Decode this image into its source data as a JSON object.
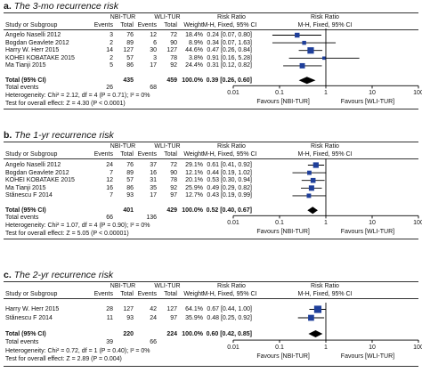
{
  "chart_data": [
    {
      "type": "forest",
      "panel_label": "a.",
      "title": "The 3-mo recurrence risk",
      "headers": {
        "study": "Study or Subgroup",
        "group1": "NBI-TUR",
        "group2": "WLI-TUR",
        "events": "Events",
        "total": "Total",
        "weight": "Weight",
        "rr": "Risk Ratio",
        "rr_sub": "M-H, Fixed, 95% CI",
        "plot": "Risk Ratio",
        "plot_sub": "M-H, Fixed, 95% CI"
      },
      "studies": [
        {
          "name": "Angelo Naselli 2012",
          "e1": "3",
          "n1": "76",
          "e2": "12",
          "n2": "72",
          "weight": "18.4%",
          "ci": "0.24 [0.07, 0.80]",
          "rr": 0.24,
          "lo": 0.07,
          "hi": 0.8,
          "w": 18.4
        },
        {
          "name": "Bogdan Geavlete 2012",
          "e1": "2",
          "n1": "89",
          "e2": "6",
          "n2": "90",
          "weight": "8.9%",
          "ci": "0.34 [0.07, 1.63]",
          "rr": 0.34,
          "lo": 0.07,
          "hi": 1.63,
          "w": 8.9
        },
        {
          "name": "Harry W. Herr 2015",
          "e1": "14",
          "n1": "127",
          "e2": "30",
          "n2": "127",
          "weight": "44.6%",
          "ci": "0.47 [0.26, 0.84]",
          "rr": 0.47,
          "lo": 0.26,
          "hi": 0.84,
          "w": 44.6
        },
        {
          "name": "KOHEI KOBATAKE 2015",
          "e1": "2",
          "n1": "57",
          "e2": "3",
          "n2": "78",
          "weight": "3.8%",
          "ci": "0.91 [0.16, 5.28]",
          "rr": 0.91,
          "lo": 0.16,
          "hi": 5.28,
          "w": 3.8
        },
        {
          "name": "Ma Tianji 2015",
          "e1": "5",
          "n1": "86",
          "e2": "17",
          "n2": "92",
          "weight": "24.4%",
          "ci": "0.31 [0.12, 0.82]",
          "rr": 0.31,
          "lo": 0.12,
          "hi": 0.82,
          "w": 24.4
        }
      ],
      "total": {
        "label": "Total (95% CI)",
        "n1": "435",
        "n2": "459",
        "weight": "100.0%",
        "ci": "0.39 [0.26, 0.60]",
        "rr": 0.39,
        "lo": 0.26,
        "hi": 0.6
      },
      "total_events": {
        "label": "Total events",
        "e1": "26",
        "e2": "68"
      },
      "heterogeneity": "Heterogeneity: Chi² = 2.12, df = 4 (P = 0.71); I² = 0%",
      "overall_effect": "Test for overall effect: Z = 4.30 (P < 0.0001)",
      "axis": {
        "scale": "log",
        "ticks": [
          0.01,
          0.1,
          1,
          10,
          100
        ],
        "tick_labels": [
          "0.01",
          "0.1",
          "1",
          "10",
          "100"
        ],
        "range": [
          0.01,
          100
        ]
      },
      "favours_left": "Favours [NBI-TUR]",
      "favours_right": "Favours [WLI-TUR]"
    },
    {
      "type": "forest",
      "panel_label": "b.",
      "title": "The 1-yr recurrence risk",
      "headers": {
        "study": "Study or Subgroup",
        "group1": "NBI-TUR",
        "group2": "WLI-TUR",
        "events": "Events",
        "total": "Total",
        "weight": "Weight",
        "rr": "Risk Ratio",
        "rr_sub": "M-H, Fixed, 95% CI",
        "plot": "Risk Ratio",
        "plot_sub": "M-H, Fixed, 95% CI"
      },
      "studies": [
        {
          "name": "Angelo Naselli 2012",
          "e1": "24",
          "n1": "76",
          "e2": "37",
          "n2": "72",
          "weight": "29.1%",
          "ci": "0.61 [0.41, 0.92]",
          "rr": 0.61,
          "lo": 0.41,
          "hi": 0.92,
          "w": 29.1
        },
        {
          "name": "Bogdan Geavlete 2012",
          "e1": "7",
          "n1": "89",
          "e2": "16",
          "n2": "90",
          "weight": "12.1%",
          "ci": "0.44 [0.19, 1.02]",
          "rr": 0.44,
          "lo": 0.19,
          "hi": 1.02,
          "w": 12.1
        },
        {
          "name": "KOHEI KOBATAKE 2015",
          "e1": "12",
          "n1": "57",
          "e2": "31",
          "n2": "78",
          "weight": "20.1%",
          "ci": "0.53 [0.30, 0.94]",
          "rr": 0.53,
          "lo": 0.3,
          "hi": 0.94,
          "w": 20.1
        },
        {
          "name": "Ma Tianji 2015",
          "e1": "16",
          "n1": "86",
          "e2": "35",
          "n2": "92",
          "weight": "25.9%",
          "ci": "0.49 [0.29, 0.82]",
          "rr": 0.49,
          "lo": 0.29,
          "hi": 0.82,
          "w": 25.9
        },
        {
          "name": "Stănescu F 2014",
          "e1": "7",
          "n1": "93",
          "e2": "17",
          "n2": "97",
          "weight": "12.7%",
          "ci": "0.43 [0.19, 0.99]",
          "rr": 0.43,
          "lo": 0.19,
          "hi": 0.99,
          "w": 12.7
        }
      ],
      "total": {
        "label": "Total (95% CI)",
        "n1": "401",
        "n2": "429",
        "weight": "100.0%",
        "ci": "0.52 [0.40, 0.67]",
        "rr": 0.52,
        "lo": 0.4,
        "hi": 0.67
      },
      "total_events": {
        "label": "Total events",
        "e1": "66",
        "e2": "136"
      },
      "heterogeneity": "Heterogeneity: Chi² = 1.07, df = 4 (P = 0.90); I² = 0%",
      "overall_effect": "Test for overall effect: Z = 5.05 (P < 0.00001)",
      "axis": {
        "scale": "log",
        "ticks": [
          0.01,
          0.1,
          1,
          10,
          100
        ],
        "tick_labels": [
          "0.01",
          "0.1",
          "1",
          "10",
          "100"
        ],
        "range": [
          0.01,
          100
        ]
      },
      "favours_left": "Favours [NBI-TUR]",
      "favours_right": "Favours [WLI-TUR]"
    },
    {
      "type": "forest",
      "panel_label": "c.",
      "title": "The 2-yr recurrence risk",
      "headers": {
        "study": "Study or Subgroup",
        "group1": "NBI-TUR",
        "group2": "WLI-TUR",
        "events": "Events",
        "total": "Total",
        "weight": "Weight",
        "rr": "Risk Ratio",
        "rr_sub": "M-H, Fixed, 95% CI",
        "plot": "Risk Ratio",
        "plot_sub": "M-H, Fixed, 95% CI"
      },
      "studies": [
        {
          "name": "Harry W. Herr 2015",
          "e1": "28",
          "n1": "127",
          "e2": "42",
          "n2": "127",
          "weight": "64.1%",
          "ci": "0.67 [0.44, 1.00]",
          "rr": 0.67,
          "lo": 0.44,
          "hi": 1.0,
          "w": 64.1
        },
        {
          "name": "Stănescu F 2014",
          "e1": "11",
          "n1": "93",
          "e2": "24",
          "n2": "97",
          "weight": "35.9%",
          "ci": "0.48 [0.25, 0.92]",
          "rr": 0.48,
          "lo": 0.25,
          "hi": 0.92,
          "w": 35.9
        }
      ],
      "total": {
        "label": "Total (95% CI)",
        "n1": "220",
        "n2": "224",
        "weight": "100.0%",
        "ci": "0.60 [0.42, 0.85]",
        "rr": 0.6,
        "lo": 0.42,
        "hi": 0.85
      },
      "total_events": {
        "label": "Total events",
        "e1": "39",
        "e2": "66"
      },
      "heterogeneity": "Heterogeneity: Chi² = 0.72, df = 1 (P = 0.40); I² = 0%",
      "overall_effect": "Test for overall effect: Z = 2.89 (P = 0.004)",
      "axis": {
        "scale": "log",
        "ticks": [
          0.01,
          0.1,
          1,
          10,
          100
        ],
        "tick_labels": [
          "0.01",
          "0.1",
          "1",
          "10",
          "100"
        ],
        "range": [
          0.01,
          100
        ]
      },
      "favours_left": "Favours [NBI-TUR]",
      "favours_right": "Favours [WLI-TUR]"
    }
  ],
  "colors": {
    "marker": "#1f3f9a",
    "diamond": "#000000",
    "line": "#000000"
  }
}
